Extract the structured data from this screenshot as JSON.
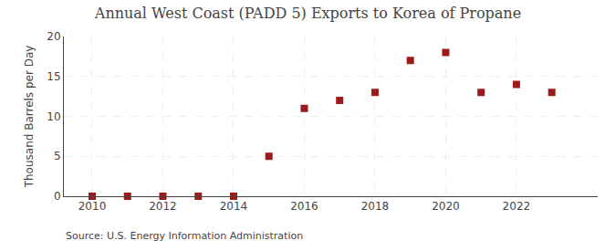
{
  "chart_data": {
    "type": "scatter",
    "title": "Annual West Coast (PADD 5) Exports to Korea of Propane",
    "ylabel": "Thousand Barrels per Day",
    "annotations": [
      "Source: U.S. Energy Information Administration"
    ],
    "x": [
      2010,
      2011,
      2012,
      2013,
      2014,
      2015,
      2016,
      2017,
      2018,
      2019,
      2020,
      2021,
      2022,
      2023
    ],
    "values": [
      0,
      0,
      0,
      0,
      0,
      5,
      11,
      12,
      13,
      17,
      18,
      13,
      14,
      13
    ],
    "color": "#9b1a1a",
    "marker": "square",
    "xlim": [
      2009.2,
      2024.3
    ],
    "xticks": [
      2010,
      2012,
      2014,
      2016,
      2018,
      2020,
      2022
    ],
    "ylim": [
      0,
      20
    ],
    "yticks": [
      0,
      5,
      10,
      15,
      20
    ],
    "grid": true
  }
}
